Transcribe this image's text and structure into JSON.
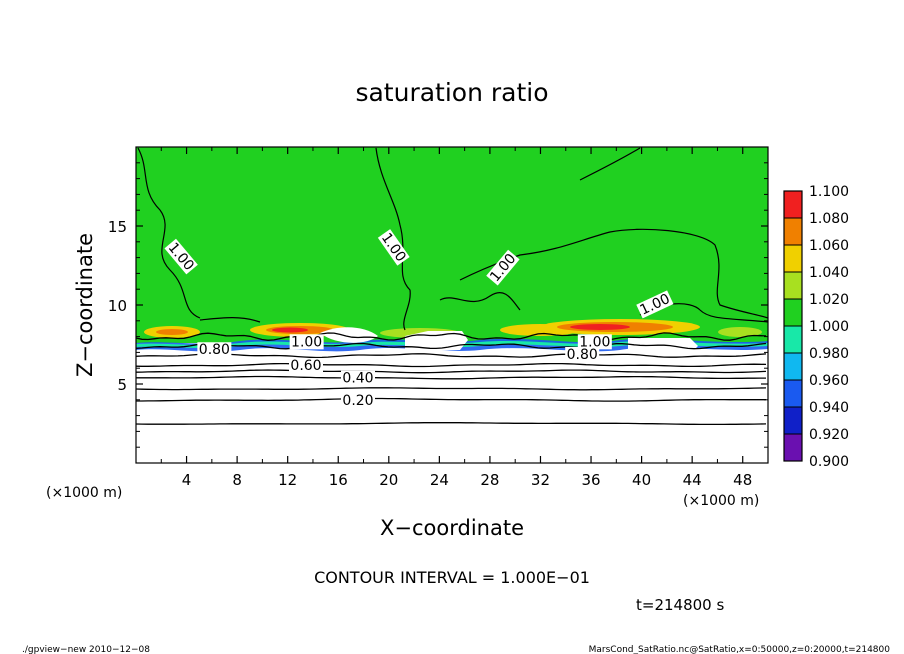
{
  "chart_data": {
    "type": "heatmap",
    "title": "saturation ratio",
    "xlabel": "X−coordinate",
    "ylabel": "Z−coordinate",
    "x_unit_left": "(×1000 m)",
    "x_unit_right": "(×1000 m)",
    "xlim": [
      0,
      50
    ],
    "ylim": [
      0,
      20
    ],
    "x_ticks": [
      4,
      8,
      12,
      16,
      20,
      24,
      28,
      32,
      36,
      40,
      44,
      48
    ],
    "x_tick_labels": [
      "4",
      "8",
      "12",
      "16",
      "20",
      "24",
      "28",
      "32",
      "36",
      "40",
      "44",
      "48"
    ],
    "y_ticks": [
      5,
      10,
      15
    ],
    "y_tick_labels": [
      "5",
      "10",
      "15"
    ],
    "colorbar": {
      "levels": [
        0.9,
        0.92,
        0.94,
        0.96,
        0.98,
        1.0,
        1.02,
        1.04,
        1.06,
        1.08,
        1.1
      ],
      "labels": [
        "0.900",
        "0.920",
        "0.940",
        "0.960",
        "0.980",
        "1.000",
        "1.020",
        "1.040",
        "1.060",
        "1.080",
        "1.100"
      ],
      "colors": [
        "#6a10b0",
        "#1020c8",
        "#1a5af0",
        "#10b8f0",
        "#18e8a8",
        "#20d020",
        "#a8e020",
        "#f0d000",
        "#f08000",
        "#f02020",
        "#f8a0a0"
      ]
    },
    "contour_lines": [
      {
        "level": 0.2,
        "label": "0.20",
        "z": 4.0
      },
      {
        "level": 0.4,
        "label": "0.40",
        "z": 5.4
      },
      {
        "level": 0.6,
        "label": "0.60",
        "z": 6.2
      },
      {
        "level": 0.8,
        "label": "0.80",
        "z": 7.4
      },
      {
        "level": 1.0,
        "label": "1.00",
        "z": 8.0
      }
    ],
    "contour_labels_above": [
      {
        "label": "1.00",
        "x": 3.3,
        "z": 13.2
      },
      {
        "label": "1.00",
        "x": 20.1,
        "z": 13.8
      },
      {
        "label": "1.00",
        "x": 29.3,
        "z": 12.5
      },
      {
        "label": "1.00",
        "x": 41.2,
        "z": 10.1
      },
      {
        "label": "1.00",
        "x": 13.5,
        "z": 7.7
      },
      {
        "label": "1.00",
        "x": 36.3,
        "z": 7.7
      },
      {
        "label": "0.80",
        "x": 6.2,
        "z": 7.2
      },
      {
        "label": "0.80",
        "x": 35.3,
        "z": 6.9
      }
    ],
    "background_level": 1.0,
    "annotations": [
      "CONTOUR INTERVAL = 1.000E−01",
      "t=214800 s"
    ]
  },
  "footer": {
    "left": "./gpview−new   2010−12−08",
    "right": "MarsCond_SatRatio.nc@SatRatio,x=0:50000,z=0:20000,t=214800"
  }
}
